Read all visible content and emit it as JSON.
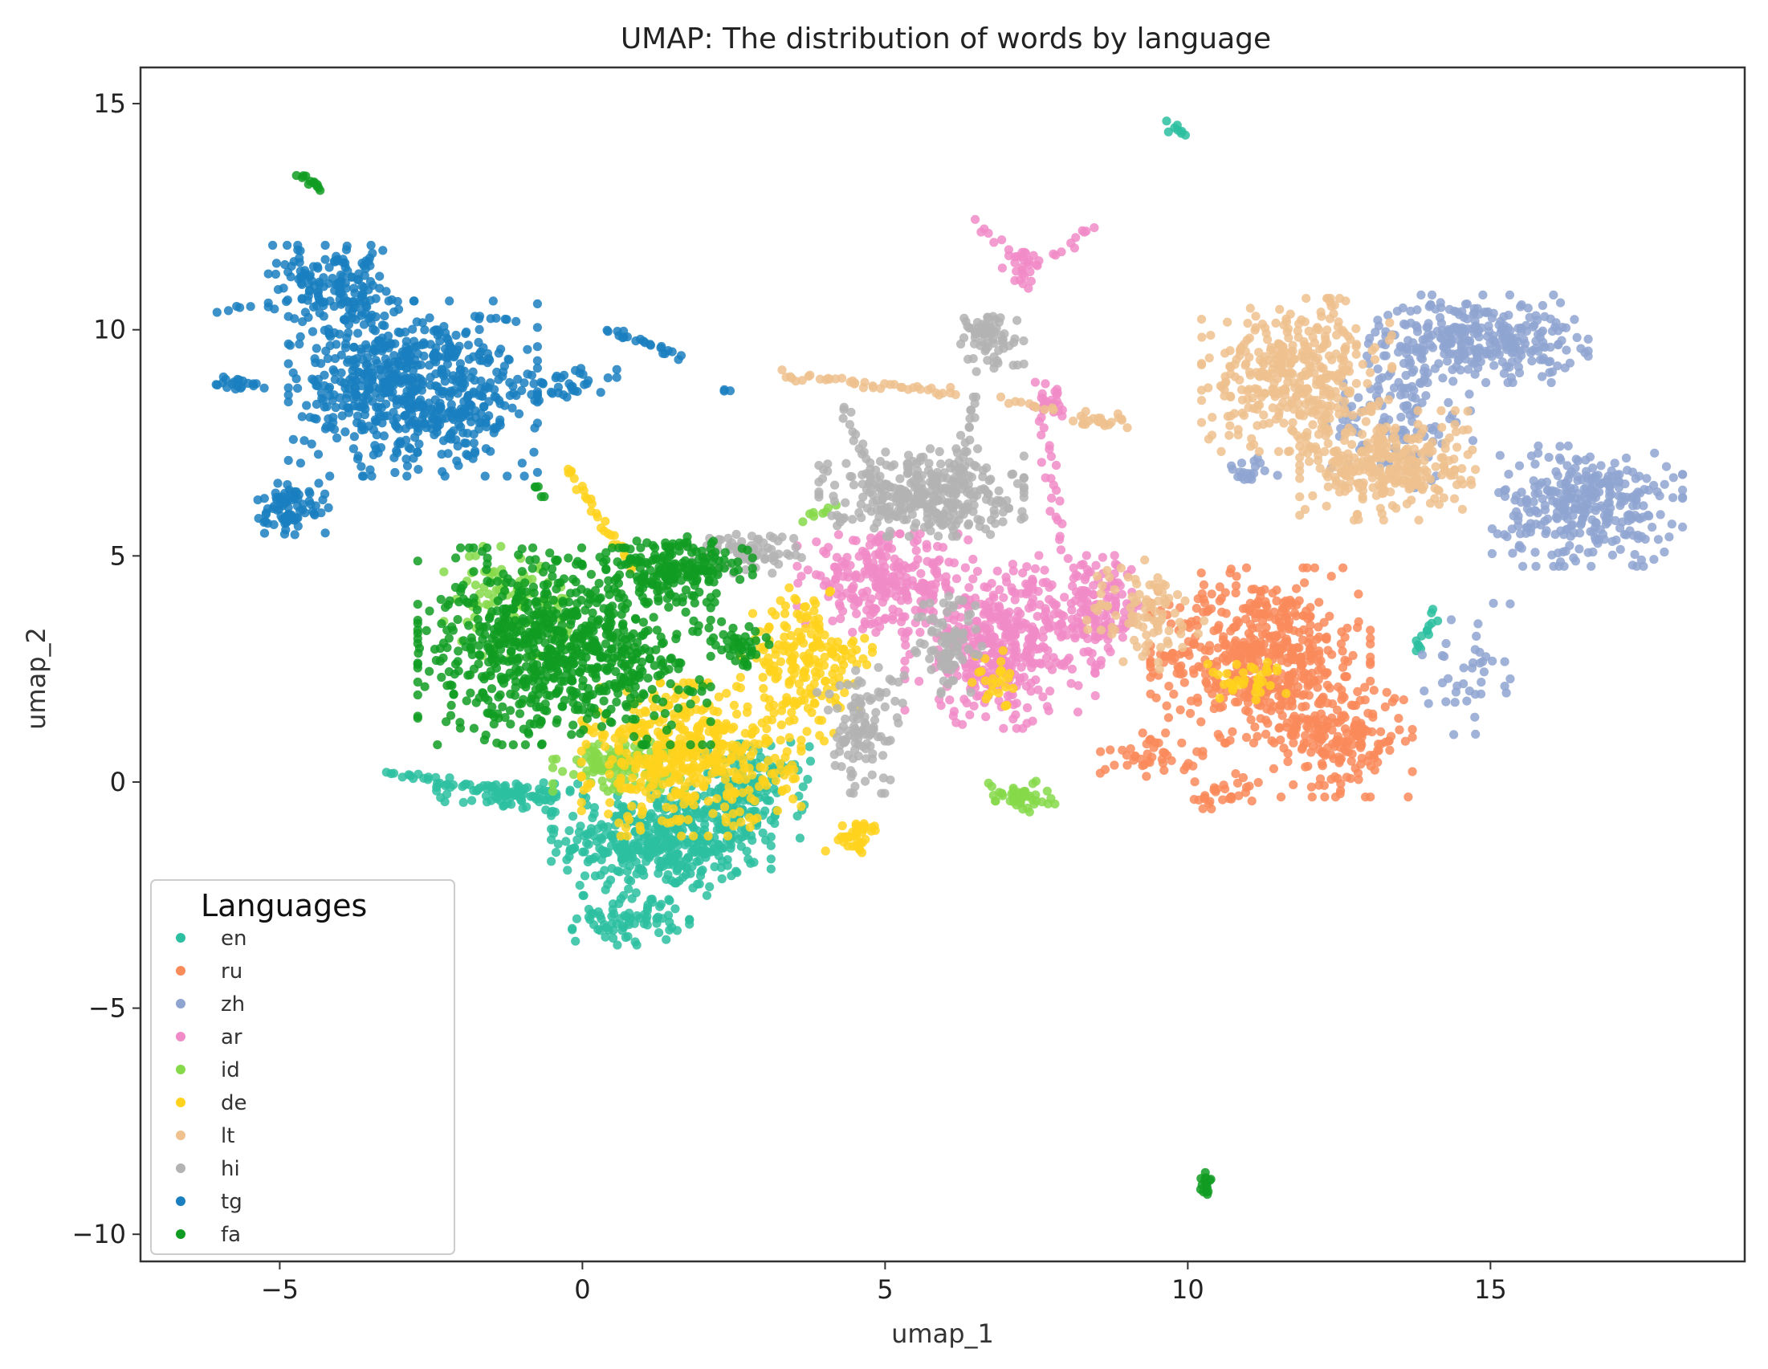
{
  "chart_data": {
    "type": "scatter",
    "title": "UMAP:  The distribution of words by language",
    "xlabel": "umap_1",
    "ylabel": "umap_2",
    "xlim": [
      -7.3,
      19.2
    ],
    "ylim": [
      -10.6,
      15.8
    ],
    "xticks": [
      -5,
      0,
      5,
      10,
      15
    ],
    "yticks": [
      -10,
      -5,
      0,
      5,
      10,
      15
    ],
    "xtick_labels": [
      "−5",
      "0",
      "5",
      "10",
      "15"
    ],
    "ytick_labels": [
      "−10",
      "−5",
      "0",
      "5",
      "10",
      "15"
    ],
    "grid": false,
    "legend": {
      "title": "Languages",
      "placement": "lower-left"
    },
    "series": [
      {
        "name": "en",
        "color": "#2cbfa0",
        "clusters": [
          [
            1.3,
            -1.3,
            1.5,
            1.0,
            420
          ],
          [
            2.8,
            -0.2,
            0.8,
            0.9,
            140
          ],
          [
            0.8,
            -3.0,
            0.8,
            0.5,
            80
          ],
          [
            -1.2,
            -0.3,
            1.0,
            0.3,
            70
          ]
        ],
        "trails": [
          [
            -3.2,
            0.2,
            -0.5,
            -0.4,
            40
          ],
          [
            9.7,
            14.6,
            9.9,
            14.3,
            8
          ],
          [
            13.8,
            2.9,
            14.1,
            3.7,
            14
          ]
        ]
      },
      {
        "name": "ru",
        "color": "#f98a5a",
        "clusters": [
          [
            11.2,
            2.8,
            1.5,
            1.6,
            520
          ],
          [
            12.5,
            1.0,
            1.0,
            1.1,
            200
          ],
          [
            9.4,
            0.6,
            0.7,
            0.4,
            40
          ],
          [
            10.6,
            -0.3,
            0.6,
            0.4,
            30
          ]
        ],
        "trails": []
      },
      {
        "name": "zh",
        "color": "#8fa4d1",
        "clusters": [
          [
            14.8,
            9.8,
            1.5,
            0.8,
            300
          ],
          [
            16.6,
            6.1,
            1.3,
            1.1,
            320
          ],
          [
            13.5,
            8.2,
            1.0,
            1.4,
            120
          ],
          [
            14.6,
            2.5,
            0.6,
            1.2,
            40
          ],
          [
            11.0,
            6.8,
            0.4,
            0.3,
            20
          ]
        ],
        "trails": []
      },
      {
        "name": "ar",
        "color": "#f18bc8",
        "clusters": [
          [
            6.9,
            3.0,
            1.3,
            1.5,
            380
          ],
          [
            5.0,
            4.4,
            1.2,
            0.9,
            250
          ],
          [
            8.4,
            3.8,
            0.8,
            1.0,
            150
          ],
          [
            7.3,
            11.4,
            0.3,
            0.4,
            25
          ],
          [
            7.7,
            8.4,
            0.3,
            0.4,
            30
          ]
        ],
        "trails": [
          [
            6.5,
            12.3,
            7.2,
            11.5,
            10
          ],
          [
            7.8,
            11.6,
            8.4,
            12.3,
            10
          ],
          [
            7.7,
            7.8,
            7.9,
            5.2,
            20
          ]
        ]
      },
      {
        "name": "id",
        "color": "#86d94a",
        "clusters": [
          [
            -1.2,
            4.0,
            0.9,
            1.0,
            90
          ],
          [
            0.6,
            0.4,
            0.9,
            0.5,
            110
          ],
          [
            7.2,
            -0.3,
            0.5,
            0.3,
            45
          ]
        ],
        "trails": [
          [
            3.6,
            5.8,
            4.2,
            6.1,
            8
          ]
        ]
      },
      {
        "name": "de",
        "color": "#ffd21c",
        "clusters": [
          [
            1.8,
            0.5,
            1.5,
            1.4,
            450
          ],
          [
            3.7,
            2.6,
            0.9,
            1.4,
            200
          ],
          [
            4.5,
            -1.2,
            0.4,
            0.3,
            35
          ],
          [
            11.0,
            2.3,
            0.6,
            0.4,
            35
          ],
          [
            6.8,
            2.3,
            0.3,
            0.6,
            25
          ]
        ],
        "trails": [
          [
            -0.3,
            7.0,
            0.8,
            4.8,
            28
          ]
        ]
      },
      {
        "name": "lt",
        "color": "#eec18e",
        "clusters": [
          [
            11.8,
            9.0,
            1.3,
            1.4,
            380
          ],
          [
            13.3,
            7.0,
            1.2,
            1.0,
            300
          ],
          [
            9.3,
            3.7,
            0.8,
            1.0,
            90
          ],
          [
            8.5,
            8.0,
            0.5,
            0.2,
            25
          ]
        ],
        "trails": [
          [
            3.3,
            9.0,
            6.2,
            8.6,
            40
          ],
          [
            7.0,
            8.5,
            7.8,
            8.2,
            10
          ]
        ]
      },
      {
        "name": "hi",
        "color": "#b3b3b3",
        "clusters": [
          [
            5.6,
            6.4,
            1.4,
            0.8,
            320
          ],
          [
            6.7,
            9.8,
            0.5,
            0.6,
            70
          ],
          [
            2.7,
            5.1,
            0.8,
            0.4,
            70
          ],
          [
            4.6,
            1.2,
            0.6,
            1.2,
            110
          ],
          [
            6.1,
            3.0,
            0.5,
            1.0,
            80
          ]
        ],
        "trails": [
          [
            6.5,
            8.6,
            6.0,
            5.6,
            30
          ],
          [
            4.3,
            8.3,
            4.9,
            6.5,
            18
          ]
        ]
      },
      {
        "name": "tg",
        "color": "#1a7fbf",
        "clusters": [
          [
            -2.8,
            8.7,
            1.7,
            1.6,
            650
          ],
          [
            -4.1,
            10.9,
            0.9,
            0.8,
            160
          ],
          [
            -4.8,
            6.0,
            0.5,
            0.5,
            80
          ],
          [
            -5.7,
            8.8,
            0.4,
            0.2,
            20
          ],
          [
            -0.4,
            8.8,
            0.8,
            0.3,
            40
          ]
        ],
        "trails": [
          [
            0.4,
            10.0,
            1.6,
            9.4,
            22
          ],
          [
            -6.0,
            10.4,
            -5.5,
            10.5,
            5
          ],
          [
            2.3,
            8.7,
            2.4,
            8.7,
            3
          ]
        ]
      },
      {
        "name": "fa",
        "color": "#109c22",
        "clusters": [
          [
            -0.3,
            3.0,
            2.0,
            1.8,
            820
          ],
          [
            1.6,
            4.7,
            1.0,
            0.6,
            180
          ],
          [
            2.6,
            3.0,
            0.4,
            0.6,
            40
          ],
          [
            10.3,
            -8.9,
            0.1,
            0.3,
            15
          ]
        ],
        "trails": [
          [
            -4.7,
            13.4,
            -4.3,
            13.1,
            12
          ],
          [
            -0.8,
            6.6,
            -0.6,
            6.3,
            5
          ]
        ]
      }
    ]
  }
}
